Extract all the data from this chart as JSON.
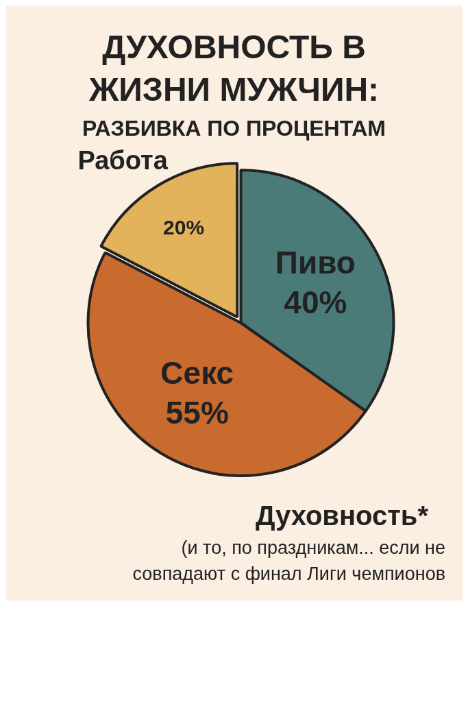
{
  "chart_data": {
    "type": "pie",
    "title": "ДУХОВНОСТЬ В ЖИЗНИ МУЖЧИН:",
    "subtitle": "РАЗБИВКА ПО ПРОЦЕНТАМ",
    "categories": [
      "Пиво",
      "Секс",
      "Работа"
    ],
    "values": [
      40,
      55,
      20
    ],
    "colors": [
      "#4a7b79",
      "#c96a2f",
      "#e2b35a"
    ],
    "value_labels": [
      "40%",
      "55%",
      "20%"
    ],
    "annotations": [
      "Духовность*",
      "(и то, по праздникам... если не совпадают с финал Лиги чемпионов"
    ],
    "legend": false
  }
}
